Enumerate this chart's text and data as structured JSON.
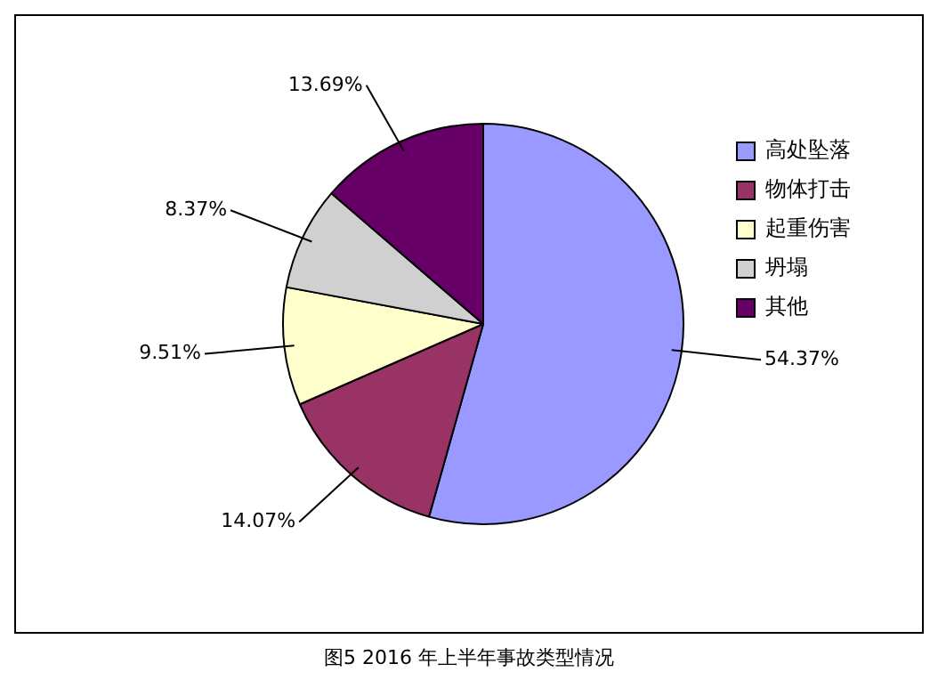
{
  "chart_data": {
    "type": "pie",
    "title": "图5  2016 年上半年事故类型情况",
    "categories": [
      "高处坠落",
      "物体打击",
      "起重伤害",
      "坍塌",
      "其他"
    ],
    "values": [
      54.37,
      14.07,
      9.51,
      8.37,
      13.69
    ],
    "value_labels": [
      "54.37%",
      "14.07%",
      "9.51%",
      "8.37%",
      "13.69%"
    ],
    "colors": [
      "#9999ff",
      "#993366",
      "#ffffcc",
      "#d0d0d0",
      "#660066"
    ],
    "legend": "top right"
  }
}
